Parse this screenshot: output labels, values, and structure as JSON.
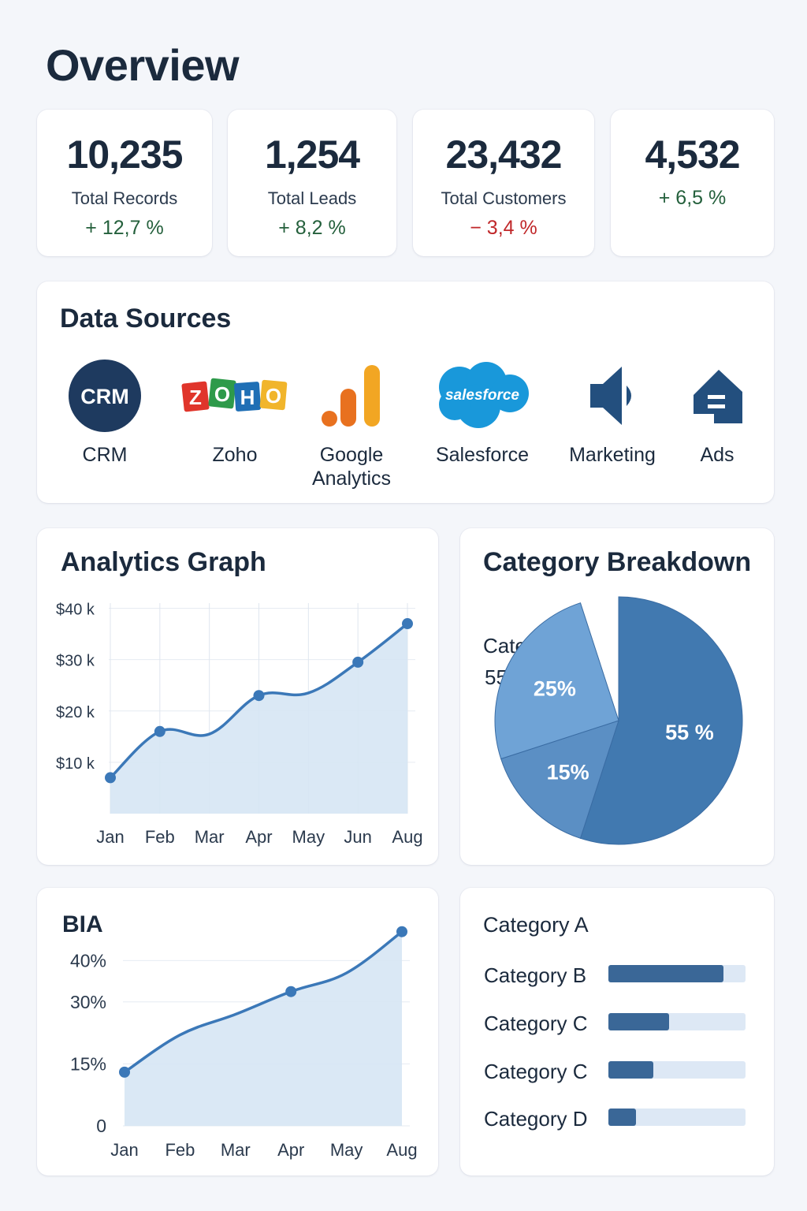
{
  "page": {
    "title": "Overview"
  },
  "stats": [
    {
      "value": "10,235",
      "label": "Total Records",
      "change": "+ 12,7 %",
      "trend": "up"
    },
    {
      "value": "1,254",
      "label": "Total Leads",
      "change": "+ 8,2 %",
      "trend": "up"
    },
    {
      "value": "23,432",
      "label": "Total Customers",
      "change": "− 3,4 %",
      "trend": "down"
    },
    {
      "value": "4,532",
      "label": "",
      "change": "+ 6,5 %",
      "trend": "up"
    }
  ],
  "data_sources": {
    "title": "Data Sources",
    "items": [
      {
        "name": "CRM",
        "icon": "crm-logo-icon",
        "badge": "CRM"
      },
      {
        "name": "Zoho",
        "icon": "zoho-logo-icon",
        "badge": "ZOHO"
      },
      {
        "name": "Google Analytics",
        "icon": "google-analytics-logo-icon"
      },
      {
        "name": "Salesforce",
        "icon": "salesforce-logo-icon",
        "badge": "salesforce"
      },
      {
        "name": "Marketing",
        "icon": "megaphone-icon"
      },
      {
        "name": "Ads",
        "icon": "ads-tag-icon"
      }
    ]
  },
  "analytics_graph": {
    "title": "Analytics Graph",
    "chart_data": {
      "type": "area",
      "categories": [
        "Jan",
        "Feb",
        "Mar",
        "Apr",
        "May",
        "Jun",
        "Aug"
      ],
      "values": [
        7,
        16,
        15.5,
        23,
        23.5,
        29.5,
        37
      ],
      "y_ticks": [
        10,
        20,
        30,
        40
      ],
      "y_tick_labels": [
        "$10 k",
        "$20 k",
        "$30 k",
        "$40 k"
      ],
      "ylim": [
        0,
        41
      ],
      "marker_indices": [
        0,
        1,
        3,
        5,
        6
      ],
      "color": "#3b78b8",
      "fill": "#d6e5f4"
    }
  },
  "category_breakdown": {
    "title": "Category Breakdown",
    "callout_label": "Category A",
    "callout_value": "55 %",
    "chart_data": {
      "type": "pie",
      "slices": [
        {
          "label": "55 %",
          "value": 55,
          "color": "#4179b0"
        },
        {
          "label": "15%",
          "value": 15,
          "color": "#5b8fc4"
        },
        {
          "label": "25%",
          "value": 25,
          "color": "#6fa3d6"
        }
      ],
      "missing_share": 5
    }
  },
  "bia_graph": {
    "title": "BIA",
    "chart_data": {
      "type": "area",
      "categories": [
        "Jan",
        "Feb",
        "Mar",
        "Apr",
        "May",
        "Aug"
      ],
      "values": [
        13,
        22,
        27,
        32.5,
        37,
        47
      ],
      "y_ticks": [
        0,
        15,
        30,
        40
      ],
      "y_tick_labels": [
        "0",
        "15%",
        "30%",
        "40%"
      ],
      "ylim": [
        0,
        50
      ],
      "marker_indices": [
        0,
        3,
        5
      ],
      "color": "#3b78b8",
      "fill": "#d6e5f4"
    }
  },
  "category_bars": {
    "title": "Category A",
    "chart_data": {
      "type": "bar",
      "orientation": "horizontal",
      "categories": [
        "Category B",
        "Category C",
        "Category C",
        "Category D"
      ],
      "values": [
        84,
        44,
        33,
        20
      ],
      "xlim": [
        0,
        100
      ],
      "color": "#3a6797",
      "track_color": "#dde8f5"
    }
  },
  "colors": {
    "background": "#f4f6fa",
    "card": "#ffffff",
    "text": "#1b2a3d",
    "positive": "#24603c",
    "negative": "#c0282a",
    "accent": "#3b78b8"
  }
}
